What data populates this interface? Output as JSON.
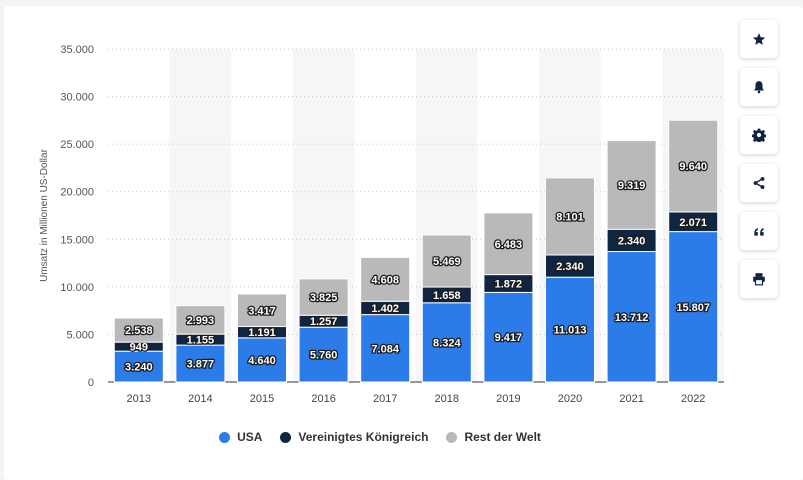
{
  "chart_data": {
    "type": "bar",
    "stacked": true,
    "categories": [
      "2013",
      "2014",
      "2015",
      "2016",
      "2017",
      "2018",
      "2019",
      "2020",
      "2021",
      "2022"
    ],
    "series": [
      {
        "name": "USA",
        "color": "#2b7ce9",
        "values": [
          3240,
          3877,
          4640,
          5760,
          7084,
          8324,
          9417,
          11013,
          13712,
          15807
        ],
        "labels": [
          "3.240",
          "3.877",
          "4.640",
          "5.760",
          "7.084",
          "8.324",
          "9.417",
          "11.013",
          "13.712",
          "15.807"
        ]
      },
      {
        "name": "Vereinigtes Königreich",
        "color": "#0f2541",
        "values": [
          949,
          1155,
          1191,
          1257,
          1402,
          1658,
          1872,
          2340,
          2340,
          2071
        ],
        "labels": [
          "949",
          "1.155",
          "1.191",
          "1.257",
          "1.402",
          "1.658",
          "1.872",
          "2.340",
          "2.340",
          "2.071"
        ]
      },
      {
        "name": "Rest der Welt",
        "color": "#b9b9b9",
        "values": [
          2538,
          2993,
          3417,
          3825,
          4608,
          5469,
          6483,
          8101,
          9319,
          9640
        ],
        "labels": [
          "2.538",
          "2.993",
          "3.417",
          "3.825",
          "4.608",
          "5.469",
          "6.483",
          "8.101",
          "9.319",
          "9.640"
        ]
      }
    ],
    "ylabel": "Umsatz in Millionen US-Dollar",
    "ylim": [
      0,
      35000
    ],
    "yticks": [
      0,
      5000,
      10000,
      15000,
      20000,
      25000,
      30000,
      35000
    ],
    "ytick_labels": [
      "0",
      "5.000",
      "10.000",
      "15.000",
      "20.000",
      "25.000",
      "30.000",
      "35.000"
    ],
    "grid": true,
    "legend_position": "bottom"
  },
  "legend": [
    {
      "label": "USA",
      "color": "#2b7ce9"
    },
    {
      "label": "Vereinigtes Königreich",
      "color": "#0f2541"
    },
    {
      "label": "Rest der Welt",
      "color": "#b9b9b9"
    }
  ],
  "toolbar": [
    {
      "name": "star-icon"
    },
    {
      "name": "bell-icon"
    },
    {
      "name": "gear-icon"
    },
    {
      "name": "share-icon"
    },
    {
      "name": "quote-icon"
    },
    {
      "name": "print-icon"
    }
  ]
}
